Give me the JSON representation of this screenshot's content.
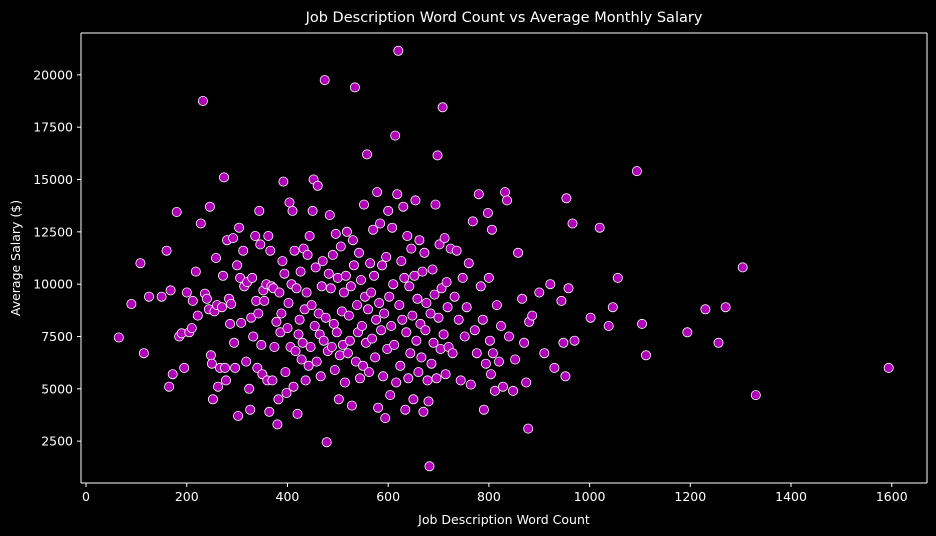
{
  "chart_data": {
    "type": "scatter",
    "title": "Job Description Word Count vs Average Monthly Salary",
    "xlabel": "Job Description Word Count",
    "ylabel": "Average Salary ($)",
    "xlim": [
      -10,
      1670
    ],
    "ylim": [
      500,
      22000
    ],
    "xticks": [
      0,
      200,
      400,
      600,
      800,
      1000,
      1200,
      1400,
      1600
    ],
    "yticks": [
      2500,
      5000,
      7500,
      10000,
      12500,
      15000,
      17500,
      20000
    ],
    "grid": false,
    "legend": "none",
    "colors": {
      "background": "#000000",
      "point_fill": "#b000b8",
      "point_edge": "#ffffff",
      "text": "#ffffff"
    },
    "points": [
      [
        65,
        7450
      ],
      [
        90,
        9050
      ],
      [
        108,
        11000
      ],
      [
        115,
        6700
      ],
      [
        125,
        9400
      ],
      [
        150,
        9400
      ],
      [
        160,
        11600
      ],
      [
        165,
        5100
      ],
      [
        168,
        9700
      ],
      [
        172,
        5700
      ],
      [
        180,
        13450
      ],
      [
        185,
        7500
      ],
      [
        190,
        7650
      ],
      [
        195,
        6000
      ],
      [
        200,
        9600
      ],
      [
        205,
        7700
      ],
      [
        210,
        7900
      ],
      [
        212,
        9200
      ],
      [
        218,
        10600
      ],
      [
        222,
        8500
      ],
      [
        228,
        12900
      ],
      [
        232,
        18750
      ],
      [
        236,
        9550
      ],
      [
        240,
        9300
      ],
      [
        244,
        8800
      ],
      [
        246,
        13700
      ],
      [
        248,
        6600
      ],
      [
        250,
        6200
      ],
      [
        252,
        4500
      ],
      [
        255,
        8700
      ],
      [
        258,
        11250
      ],
      [
        260,
        9000
      ],
      [
        262,
        5100
      ],
      [
        266,
        6000
      ],
      [
        270,
        8900
      ],
      [
        272,
        10400
      ],
      [
        274,
        15100
      ],
      [
        276,
        6000
      ],
      [
        278,
        5400
      ],
      [
        280,
        12100
      ],
      [
        284,
        9300
      ],
      [
        286,
        8100
      ],
      [
        288,
        9050
      ],
      [
        292,
        12200
      ],
      [
        294,
        7200
      ],
      [
        296,
        6000
      ],
      [
        300,
        10900
      ],
      [
        302,
        3700
      ],
      [
        304,
        12700
      ],
      [
        306,
        10300
      ],
      [
        308,
        8150
      ],
      [
        312,
        11600
      ],
      [
        314,
        9900
      ],
      [
        318,
        6300
      ],
      [
        320,
        10100
      ],
      [
        324,
        5000
      ],
      [
        326,
        4000
      ],
      [
        328,
        8400
      ],
      [
        330,
        10300
      ],
      [
        332,
        7500
      ],
      [
        336,
        12300
      ],
      [
        338,
        9200
      ],
      [
        340,
        6000
      ],
      [
        342,
        8600
      ],
      [
        344,
        13500
      ],
      [
        346,
        11900
      ],
      [
        348,
        7100
      ],
      [
        350,
        5700
      ],
      [
        352,
        9700
      ],
      [
        354,
        9200
      ],
      [
        358,
        10000
      ],
      [
        360,
        5400
      ],
      [
        362,
        12300
      ],
      [
        364,
        3900
      ],
      [
        366,
        11600
      ],
      [
        368,
        9900
      ],
      [
        370,
        5400
      ],
      [
        372,
        9800
      ],
      [
        374,
        7000
      ],
      [
        378,
        8200
      ],
      [
        380,
        3300
      ],
      [
        382,
        4500
      ],
      [
        384,
        9600
      ],
      [
        386,
        7700
      ],
      [
        388,
        8600
      ],
      [
        390,
        11100
      ],
      [
        392,
        14900
      ],
      [
        394,
        10500
      ],
      [
        396,
        5800
      ],
      [
        398,
        4800
      ],
      [
        400,
        7900
      ],
      [
        402,
        9100
      ],
      [
        404,
        13900
      ],
      [
        406,
        7000
      ],
      [
        408,
        10000
      ],
      [
        410,
        13500
      ],
      [
        412,
        5100
      ],
      [
        414,
        11600
      ],
      [
        416,
        6800
      ],
      [
        418,
        9800
      ],
      [
        420,
        3800
      ],
      [
        422,
        7600
      ],
      [
        424,
        8300
      ],
      [
        426,
        10600
      ],
      [
        428,
        6400
      ],
      [
        430,
        7200
      ],
      [
        432,
        11700
      ],
      [
        434,
        8800
      ],
      [
        436,
        5400
      ],
      [
        438,
        9600
      ],
      [
        440,
        11400
      ],
      [
        442,
        6100
      ],
      [
        444,
        12300
      ],
      [
        446,
        7000
      ],
      [
        448,
        9000
      ],
      [
        450,
        13500
      ],
      [
        452,
        15000
      ],
      [
        454,
        8000
      ],
      [
        456,
        10800
      ],
      [
        458,
        6300
      ],
      [
        460,
        14700
      ],
      [
        462,
        8600
      ],
      [
        464,
        7600
      ],
      [
        466,
        5600
      ],
      [
        468,
        9900
      ],
      [
        470,
        11100
      ],
      [
        472,
        7300
      ],
      [
        474,
        19750
      ],
      [
        476,
        8400
      ],
      [
        478,
        2450
      ],
      [
        480,
        6800
      ],
      [
        482,
        10500
      ],
      [
        484,
        13300
      ],
      [
        486,
        9800
      ],
      [
        488,
        7000
      ],
      [
        490,
        11400
      ],
      [
        492,
        8100
      ],
      [
        494,
        5900
      ],
      [
        496,
        12400
      ],
      [
        498,
        7700
      ],
      [
        500,
        10300
      ],
      [
        502,
        4500
      ],
      [
        504,
        6600
      ],
      [
        506,
        11800
      ],
      [
        508,
        8700
      ],
      [
        510,
        7100
      ],
      [
        512,
        9600
      ],
      [
        514,
        5300
      ],
      [
        516,
        10400
      ],
      [
        518,
        12500
      ],
      [
        520,
        6700
      ],
      [
        522,
        8500
      ],
      [
        524,
        7300
      ],
      [
        526,
        9900
      ],
      [
        528,
        4200
      ],
      [
        530,
        12100
      ],
      [
        532,
        10900
      ],
      [
        534,
        19400
      ],
      [
        536,
        6300
      ],
      [
        538,
        9000
      ],
      [
        540,
        7700
      ],
      [
        542,
        11500
      ],
      [
        544,
        5500
      ],
      [
        546,
        10200
      ],
      [
        548,
        8000
      ],
      [
        550,
        6100
      ],
      [
        552,
        13800
      ],
      [
        554,
        9400
      ],
      [
        556,
        7200
      ],
      [
        558,
        16200
      ],
      [
        560,
        8800
      ],
      [
        562,
        5800
      ],
      [
        564,
        11000
      ],
      [
        566,
        9600
      ],
      [
        568,
        7400
      ],
      [
        570,
        12600
      ],
      [
        572,
        10400
      ],
      [
        574,
        6500
      ],
      [
        576,
        8300
      ],
      [
        578,
        14400
      ],
      [
        580,
        4100
      ],
      [
        582,
        9100
      ],
      [
        584,
        12900
      ],
      [
        586,
        7800
      ],
      [
        588,
        10900
      ],
      [
        590,
        5600
      ],
      [
        592,
        8600
      ],
      [
        594,
        3600
      ],
      [
        596,
        11300
      ],
      [
        598,
        6900
      ],
      [
        600,
        13500
      ],
      [
        602,
        9400
      ],
      [
        604,
        4700
      ],
      [
        606,
        8000
      ],
      [
        608,
        12700
      ],
      [
        610,
        10000
      ],
      [
        612,
        7100
      ],
      [
        614,
        17100
      ],
      [
        616,
        5300
      ],
      [
        618,
        14300
      ],
      [
        620,
        21150
      ],
      [
        622,
        9000
      ],
      [
        624,
        6100
      ],
      [
        626,
        11100
      ],
      [
        628,
        8300
      ],
      [
        630,
        13700
      ],
      [
        632,
        10300
      ],
      [
        634,
        4000
      ],
      [
        636,
        7700
      ],
      [
        638,
        12300
      ],
      [
        640,
        5500
      ],
      [
        642,
        9900
      ],
      [
        644,
        6700
      ],
      [
        646,
        11700
      ],
      [
        648,
        8500
      ],
      [
        650,
        4500
      ],
      [
        652,
        10400
      ],
      [
        654,
        14000
      ],
      [
        656,
        7300
      ],
      [
        658,
        9300
      ],
      [
        660,
        5800
      ],
      [
        662,
        12100
      ],
      [
        664,
        8100
      ],
      [
        666,
        6500
      ],
      [
        668,
        10600
      ],
      [
        670,
        3900
      ],
      [
        672,
        11500
      ],
      [
        674,
        7800
      ],
      [
        676,
        9100
      ],
      [
        678,
        5400
      ],
      [
        680,
        4400
      ],
      [
        682,
        1300
      ],
      [
        684,
        8600
      ],
      [
        686,
        6200
      ],
      [
        688,
        10700
      ],
      [
        690,
        7200
      ],
      [
        692,
        9500
      ],
      [
        694,
        13800
      ],
      [
        696,
        5500
      ],
      [
        698,
        16150
      ],
      [
        700,
        8400
      ],
      [
        702,
        11900
      ],
      [
        704,
        6900
      ],
      [
        706,
        9800
      ],
      [
        708,
        18450
      ],
      [
        710,
        7600
      ],
      [
        712,
        12200
      ],
      [
        714,
        5700
      ],
      [
        716,
        10100
      ],
      [
        718,
        8900
      ],
      [
        720,
        7000
      ],
      [
        724,
        11700
      ],
      [
        728,
        6700
      ],
      [
        732,
        9400
      ],
      [
        736,
        11600
      ],
      [
        740,
        8300
      ],
      [
        744,
        5400
      ],
      [
        748,
        10300
      ],
      [
        752,
        7500
      ],
      [
        756,
        8900
      ],
      [
        760,
        11000
      ],
      [
        764,
        5200
      ],
      [
        768,
        13000
      ],
      [
        772,
        7800
      ],
      [
        776,
        6700
      ],
      [
        780,
        14300
      ],
      [
        784,
        9900
      ],
      [
        788,
        8300
      ],
      [
        790,
        4000
      ],
      [
        794,
        6200
      ],
      [
        798,
        13400
      ],
      [
        800,
        10300
      ],
      [
        802,
        7300
      ],
      [
        804,
        5700
      ],
      [
        806,
        12600
      ],
      [
        808,
        6700
      ],
      [
        812,
        4900
      ],
      [
        816,
        9000
      ],
      [
        820,
        6300
      ],
      [
        824,
        8000
      ],
      [
        828,
        5100
      ],
      [
        832,
        14400
      ],
      [
        836,
        14000
      ],
      [
        840,
        7500
      ],
      [
        848,
        4900
      ],
      [
        852,
        6400
      ],
      [
        858,
        11500
      ],
      [
        866,
        9300
      ],
      [
        870,
        7200
      ],
      [
        874,
        5300
      ],
      [
        878,
        3100
      ],
      [
        880,
        8200
      ],
      [
        886,
        8500
      ],
      [
        900,
        9600
      ],
      [
        910,
        6700
      ],
      [
        922,
        10000
      ],
      [
        930,
        6000
      ],
      [
        944,
        9200
      ],
      [
        948,
        7200
      ],
      [
        952,
        5600
      ],
      [
        954,
        14100
      ],
      [
        958,
        9800
      ],
      [
        966,
        12900
      ],
      [
        970,
        7300
      ],
      [
        1002,
        8400
      ],
      [
        1020,
        12700
      ],
      [
        1038,
        8000
      ],
      [
        1046,
        8900
      ],
      [
        1056,
        10300
      ],
      [
        1094,
        15400
      ],
      [
        1104,
        8100
      ],
      [
        1112,
        6600
      ],
      [
        1194,
        7700
      ],
      [
        1230,
        8800
      ],
      [
        1256,
        7200
      ],
      [
        1270,
        8900
      ],
      [
        1304,
        10800
      ],
      [
        1330,
        4700
      ],
      [
        1594,
        6000
      ]
    ]
  }
}
